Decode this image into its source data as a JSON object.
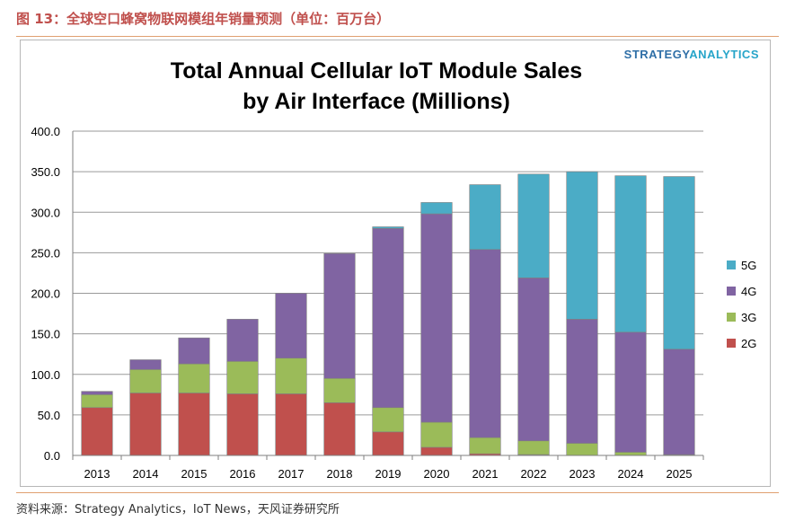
{
  "figure_caption": "图 13：全球空口蜂窝物联网模组年销量预测（单位：百万台）",
  "source_note": "资料来源：Strategy Analytics，IoT News，天风证券研究所",
  "brand": {
    "part1": "STRATEGY",
    "part2": "ANALYTICS"
  },
  "colors": {
    "2G": "#c0504d",
    "3G": "#9bbb59",
    "4G": "#8064a2",
    "5G": "#4bacc6",
    "accent": "#c0504d",
    "rule": "#e0a070"
  },
  "chart_data": {
    "type": "bar",
    "stacked": true,
    "title": "Total Annual Cellular IoT Module Sales",
    "subtitle": "by Air Interface (Millions)",
    "categories": [
      "2013",
      "2014",
      "2015",
      "2016",
      "2017",
      "2018",
      "2019",
      "2020",
      "2021",
      "2022",
      "2023",
      "2024",
      "2025"
    ],
    "series": [
      {
        "name": "2G",
        "values": [
          59,
          77,
          77,
          76,
          76,
          65,
          29,
          10,
          2,
          1,
          0,
          0,
          0
        ]
      },
      {
        "name": "3G",
        "values": [
          16,
          29,
          36,
          40,
          44,
          30,
          30,
          31,
          20,
          17,
          15,
          4,
          1
        ]
      },
      {
        "name": "4G",
        "values": [
          4,
          12,
          32,
          52,
          80,
          154,
          221,
          257,
          232,
          201,
          153,
          148,
          130
        ]
      },
      {
        "name": "5G",
        "values": [
          0,
          0,
          0,
          0,
          0,
          0,
          2,
          14,
          80,
          128,
          182,
          193,
          213
        ]
      }
    ],
    "yticks": [
      "0.0",
      "50.0",
      "100.0",
      "150.0",
      "200.0",
      "250.0",
      "300.0",
      "350.0",
      "400.0"
    ],
    "ylim": [
      0,
      400
    ],
    "grid": true,
    "legend": {
      "position": "right",
      "entries": [
        "5G",
        "4G",
        "3G",
        "2G"
      ]
    }
  }
}
